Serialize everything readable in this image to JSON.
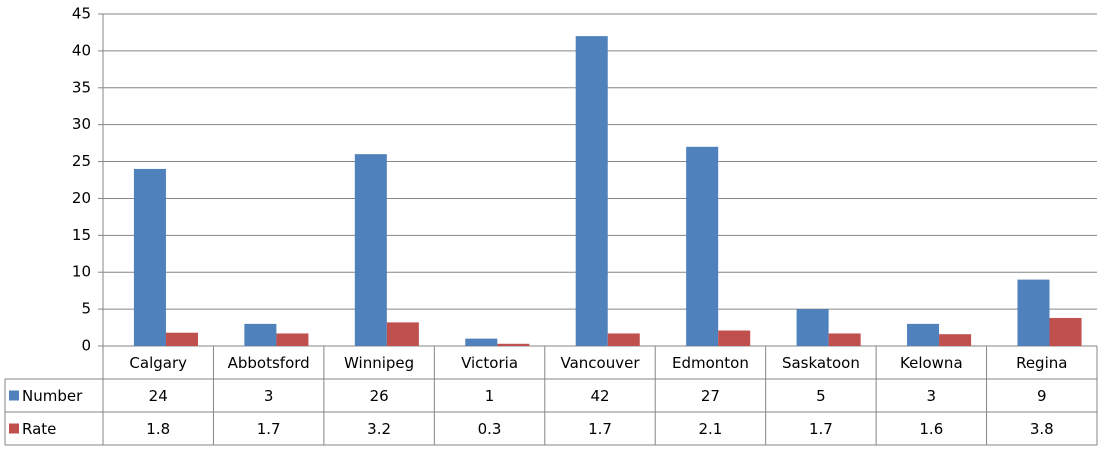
{
  "chart_data": {
    "type": "bar",
    "categories": [
      "Calgary",
      "Abbotsford",
      "Winnipeg",
      "Victoria",
      "Vancouver",
      "Edmonton",
      "Saskatoon",
      "Kelowna",
      "Regina"
    ],
    "series": [
      {
        "name": "Number",
        "color": "#4f81bd",
        "values": [
          24,
          3,
          26,
          1,
          42,
          27,
          5,
          3,
          9
        ]
      },
      {
        "name": "Rate",
        "color": "#c0504d",
        "values": [
          1.8,
          1.7,
          3.2,
          0.3,
          1.7,
          2.1,
          1.7,
          1.6,
          3.8
        ]
      }
    ],
    "ylim": [
      0,
      45
    ],
    "yticks": [
      0,
      5,
      10,
      15,
      20,
      25,
      30,
      35,
      40,
      45
    ],
    "grid": true,
    "data_table": true
  }
}
